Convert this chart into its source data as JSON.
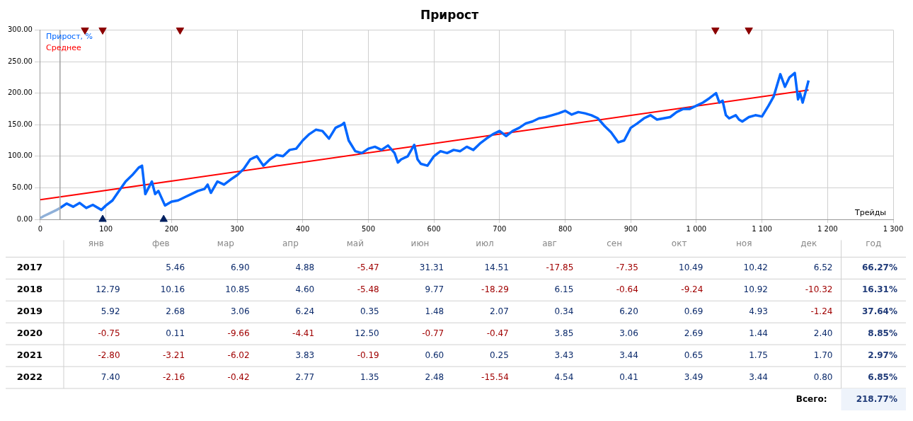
{
  "chart_data": [
    {
      "type": "line",
      "title": "Прирост",
      "xlabel": "Трейды",
      "xlim": [
        0,
        1300
      ],
      "ylim": [
        0,
        300
      ],
      "xticks": [
        0,
        100,
        200,
        300,
        400,
        500,
        600,
        700,
        800,
        900,
        {
          "value": 1000,
          "label": "1 000"
        },
        {
          "value": 1100,
          "label": "1 100"
        },
        {
          "value": 1200,
          "label": "1 200"
        },
        {
          "value": 1300,
          "label": "1 300"
        }
      ],
      "yticks": [
        {
          "value": 0,
          "label": "0.00"
        },
        {
          "value": 50,
          "label": "50.00"
        },
        {
          "value": 100,
          "label": "100.00"
        },
        {
          "value": 150,
          "label": "150.00"
        },
        {
          "value": 200,
          "label": "200.00"
        },
        {
          "value": 250,
          "label": "250.00"
        },
        {
          "value": 300,
          "label": "300.00"
        }
      ],
      "grid": true,
      "legend": "top left",
      "marker": "none",
      "line_style": "solid",
      "ref_lines": [
        {
          "axis": "x",
          "value": 30,
          "color": "#a0a0a0"
        }
      ],
      "series": [
        {
          "color": "#8fb0d8",
          "x": [
            0,
            5,
            15,
            25,
            30
          ],
          "values": [
            2,
            5,
            10,
            15,
            18
          ]
        },
        {
          "name": "Прирост, %",
          "color": "#0066ff",
          "x": [
            30,
            40,
            50,
            60,
            70,
            80,
            93,
            100,
            110,
            120,
            130,
            140,
            150,
            155,
            160,
            165,
            170,
            175,
            180,
            190,
            200,
            210,
            220,
            230,
            240,
            250,
            255,
            260,
            270,
            280,
            290,
            300,
            310,
            320,
            330,
            340,
            350,
            360,
            370,
            380,
            390,
            400,
            410,
            420,
            430,
            440,
            450,
            460,
            463,
            470,
            480,
            490,
            500,
            510,
            520,
            530,
            540,
            545,
            550,
            560,
            570,
            575,
            580,
            590,
            600,
            610,
            620,
            630,
            640,
            650,
            660,
            670,
            680,
            690,
            700,
            710,
            720,
            730,
            740,
            750,
            760,
            770,
            780,
            790,
            800,
            810,
            820,
            830,
            840,
            850,
            860,
            870,
            881,
            890,
            900,
            910,
            920,
            930,
            940,
            950,
            960,
            970,
            980,
            990,
            1000,
            1010,
            1020,
            1030,
            1035,
            1040,
            1045,
            1050,
            1060,
            1065,
            1070,
            1080,
            1090,
            1100,
            1110,
            1118,
            1128,
            1135,
            1142,
            1150,
            1155,
            1158,
            1162,
            1166,
            1171
          ],
          "values": [
            18,
            25,
            20,
            26,
            18,
            23,
            15,
            22,
            30,
            45,
            60,
            70,
            82,
            85,
            40,
            50,
            60,
            40,
            45,
            22,
            28,
            30,
            35,
            40,
            45,
            48,
            55,
            42,
            60,
            55,
            63,
            70,
            80,
            95,
            100,
            85,
            95,
            102,
            100,
            110,
            112,
            125,
            135,
            142,
            140,
            128,
            145,
            150,
            153,
            125,
            108,
            105,
            112,
            115,
            110,
            117,
            105,
            90,
            95,
            100,
            118,
            95,
            88,
            85,
            100,
            108,
            105,
            110,
            108,
            115,
            110,
            120,
            128,
            135,
            140,
            132,
            140,
            145,
            152,
            155,
            160,
            162,
            165,
            168,
            172,
            166,
            170,
            168,
            165,
            160,
            148,
            138,
            122,
            125,
            145,
            152,
            160,
            165,
            158,
            160,
            162,
            170,
            175,
            175,
            180,
            185,
            192,
            200,
            185,
            188,
            165,
            160,
            165,
            158,
            155,
            162,
            165,
            163,
            180,
            195,
            230,
            210,
            225,
            232,
            190,
            200,
            185,
            200,
            220
          ]
        },
        {
          "name": "Среднее",
          "color": "#ff0000",
          "x": [
            0,
            1171
          ],
          "values": [
            31,
            205
          ]
        },
        {
          "type": "scatter",
          "marker": "triangle",
          "color": "#8b0000",
          "x": [
            68,
            95,
            213,
            1029,
            1080
          ],
          "values": [
            300,
            300,
            300,
            300,
            300
          ]
        },
        {
          "type": "scatter",
          "marker": "triangle",
          "color": "#002060",
          "x": [
            95,
            188
          ],
          "values": [
            0,
            0
          ]
        }
      ]
    },
    {
      "type": "heatmap",
      "categories": [
        "янв",
        "фев",
        "мар",
        "апр",
        "май",
        "июн",
        "июл",
        "авг",
        "сен",
        "окт",
        "ноя",
        "дек",
        "год"
      ],
      "y_categories": [
        "2017",
        "2018",
        "2019",
        "2020",
        "2021",
        "2022"
      ],
      "cells": [
        [
          null,
          5.46,
          6.9,
          4.88,
          -5.47,
          31.31,
          14.51,
          -17.85,
          -7.35,
          10.49,
          10.42,
          6.52,
          66.27
        ],
        [
          12.79,
          10.16,
          10.85,
          4.6,
          -5.48,
          9.77,
          -18.29,
          6.15,
          -0.64,
          -9.24,
          10.92,
          -10.32,
          16.31
        ],
        [
          5.92,
          2.68,
          3.06,
          6.24,
          0.35,
          1.48,
          2.07,
          0.34,
          6.2,
          0.69,
          4.93,
          -1.24,
          37.64
        ],
        [
          -0.75,
          0.11,
          -9.66,
          -4.41,
          12.5,
          -0.77,
          -0.47,
          3.85,
          3.06,
          2.69,
          1.44,
          2.4,
          8.85
        ],
        [
          -2.8,
          -3.21,
          -6.02,
          3.83,
          -0.19,
          0.6,
          0.25,
          3.43,
          3.44,
          0.65,
          1.75,
          1.7,
          2.97
        ],
        [
          7.4,
          -2.16,
          -0.42,
          2.77,
          1.35,
          2.48,
          -15.54,
          4.54,
          0.41,
          3.49,
          3.44,
          0.8,
          6.85
        ]
      ],
      "cell_labels": [
        [
          null,
          "5.46",
          "6.90",
          "4.88",
          "-5.47",
          "31.31",
          "14.51",
          "-17.85",
          "-7.35",
          "10.49",
          "10.42",
          "6.52",
          "66.27%"
        ],
        [
          "12.79",
          "10.16",
          "10.85",
          "4.60",
          "-5.48",
          "9.77",
          "-18.29",
          "6.15",
          "-0.64",
          "-9.24",
          "10.92",
          "-10.32",
          "16.31%"
        ],
        [
          "5.92",
          "2.68",
          "3.06",
          "6.24",
          "0.35",
          "1.48",
          "2.07",
          "0.34",
          "6.20",
          "0.69",
          "4.93",
          "-1.24",
          "37.64%"
        ],
        [
          "-0.75",
          "0.11",
          "-9.66",
          "-4.41",
          "12.50",
          "-0.77",
          "-0.47",
          "3.85",
          "3.06",
          "2.69",
          "1.44",
          "2.40",
          "8.85%"
        ],
        [
          "-2.80",
          "-3.21",
          "-6.02",
          "3.83",
          "-0.19",
          "0.60",
          "0.25",
          "3.43",
          "3.44",
          "0.65",
          "1.75",
          "1.70",
          "2.97%"
        ],
        [
          "7.40",
          "-2.16",
          "-0.42",
          "2.77",
          "1.35",
          "2.48",
          "-15.54",
          "4.54",
          "0.41",
          "3.49",
          "3.44",
          "0.80",
          "6.85%"
        ]
      ],
      "annotations": [
        "Всего:",
        "218.77%"
      ]
    }
  ]
}
